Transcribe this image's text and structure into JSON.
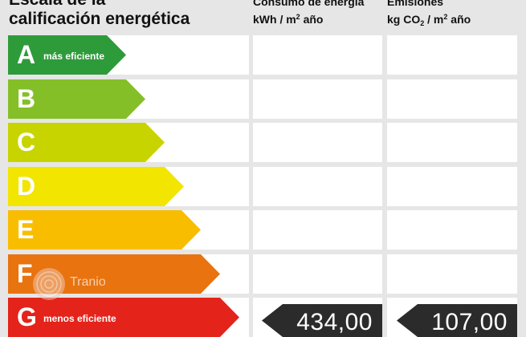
{
  "header": {
    "title_line1": "Escala de la",
    "title_line2": "calificación energética",
    "consumption_line1": "Consumo de energía",
    "consumption_unit_prefix": "kWh / m",
    "consumption_unit_sup": "2",
    "consumption_unit_suffix": " año",
    "emissions_line1": "Emisiones",
    "emissions_unit_prefix": "kg CO",
    "emissions_unit_sub": "2",
    "emissions_unit_mid": " / m",
    "emissions_unit_sup": "2",
    "emissions_unit_suffix": " año"
  },
  "ratings": [
    {
      "letter": "A",
      "label": "más eficiente",
      "color": "#2e9b3a",
      "fill": 0.49
    },
    {
      "letter": "B",
      "label": "",
      "color": "#85bf28",
      "fill": 0.57
    },
    {
      "letter": "C",
      "label": "",
      "color": "#c8d400",
      "fill": 0.65
    },
    {
      "letter": "D",
      "label": "",
      "color": "#f2e500",
      "fill": 0.73
    },
    {
      "letter": "E",
      "label": "",
      "color": "#f9bd00",
      "fill": 0.8
    },
    {
      "letter": "F",
      "label": "",
      "color": "#e8730f",
      "fill": 0.88
    },
    {
      "letter": "G",
      "label": "menos eficiente",
      "color": "#e4231b",
      "fill": 0.96
    }
  ],
  "current": {
    "rating": "G",
    "consumption": "434,00",
    "emissions": "107,00"
  },
  "watermark": {
    "text": "Tranio"
  }
}
